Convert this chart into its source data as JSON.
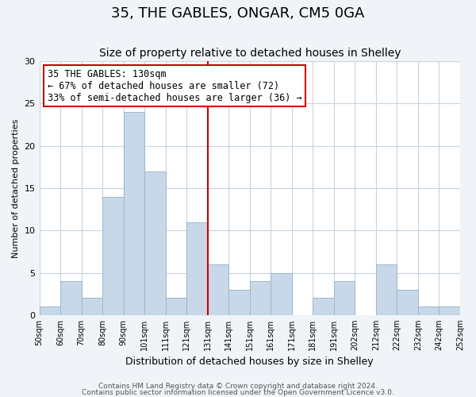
{
  "title": "35, THE GABLES, ONGAR, CM5 0GA",
  "subtitle": "Size of property relative to detached houses in Shelley",
  "xlabel": "Distribution of detached houses by size in Shelley",
  "ylabel": "Number of detached properties",
  "bar_color": "#c8d8e8",
  "bar_edge_color": "#9ab8d0",
  "vline_x": 130,
  "vline_color": "#cc0000",
  "annotation_title": "35 THE GABLES: 130sqm",
  "annotation_line1": "← 67% of detached houses are smaller (72)",
  "annotation_line2": "33% of semi-detached houses are larger (36) →",
  "annotation_box_color": "#ffffff",
  "annotation_box_edge": "#cc0000",
  "bins": [
    50,
    60,
    70,
    80,
    90,
    101,
    111,
    121,
    131,
    141,
    151,
    161,
    171,
    181,
    191,
    202,
    212,
    222,
    232,
    242,
    252
  ],
  "counts": [
    1,
    4,
    2,
    14,
    24,
    17,
    2,
    11,
    6,
    3,
    4,
    5,
    0,
    2,
    4,
    0,
    6,
    3,
    1,
    1
  ],
  "tick_labels": [
    "50sqm",
    "60sqm",
    "70sqm",
    "80sqm",
    "90sqm",
    "101sqm",
    "111sqm",
    "121sqm",
    "131sqm",
    "141sqm",
    "151sqm",
    "161sqm",
    "171sqm",
    "181sqm",
    "191sqm",
    "202sqm",
    "212sqm",
    "222sqm",
    "232sqm",
    "242sqm",
    "252sqm"
  ],
  "ylim": [
    0,
    30
  ],
  "yticks": [
    0,
    5,
    10,
    15,
    20,
    25,
    30
  ],
  "footer1": "Contains HM Land Registry data © Crown copyright and database right 2024.",
  "footer2": "Contains public sector information licensed under the Open Government Licence v3.0.",
  "bg_color": "#f0f4f8",
  "plot_bg_color": "#ffffff",
  "grid_color": "#c8d4e0",
  "title_fontsize": 13,
  "subtitle_fontsize": 10,
  "xlabel_fontsize": 9,
  "ylabel_fontsize": 8,
  "tick_fontsize": 7,
  "ytick_fontsize": 8,
  "footer_fontsize": 6.5
}
